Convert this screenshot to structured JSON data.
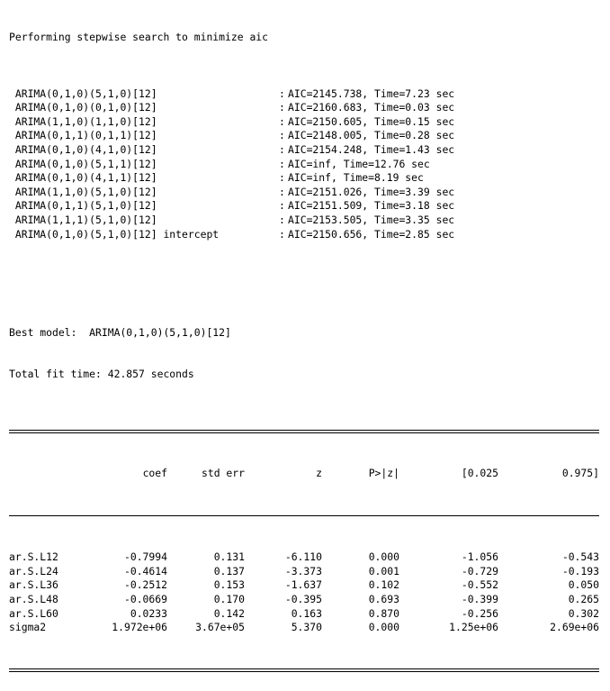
{
  "header": "Performing stepwise search to minimize aic",
  "steps": [
    {
      "model": " ARIMA(0,1,0)(5,1,0)[12]",
      "result": "AIC=2145.738, Time=7.23 sec"
    },
    {
      "model": " ARIMA(0,1,0)(0,1,0)[12]",
      "result": "AIC=2160.683, Time=0.03 sec"
    },
    {
      "model": " ARIMA(1,1,0)(1,1,0)[12]",
      "result": "AIC=2150.605, Time=0.15 sec"
    },
    {
      "model": " ARIMA(0,1,1)(0,1,1)[12]",
      "result": "AIC=2148.005, Time=0.28 sec"
    },
    {
      "model": " ARIMA(0,1,0)(4,1,0)[12]",
      "result": "AIC=2154.248, Time=1.43 sec"
    },
    {
      "model": " ARIMA(0,1,0)(5,1,1)[12]",
      "result": "AIC=inf, Time=12.76 sec"
    },
    {
      "model": " ARIMA(0,1,0)(4,1,1)[12]",
      "result": "AIC=inf, Time=8.19 sec"
    },
    {
      "model": " ARIMA(1,1,0)(5,1,0)[12]",
      "result": "AIC=2151.026, Time=3.39 sec"
    },
    {
      "model": " ARIMA(0,1,1)(5,1,0)[12]",
      "result": "AIC=2151.509, Time=3.18 sec"
    },
    {
      "model": " ARIMA(1,1,1)(5,1,0)[12]",
      "result": "AIC=2153.505, Time=3.35 sec"
    },
    {
      "model": " ARIMA(0,1,0)(5,1,0)[12] intercept",
      "result": "AIC=2150.656, Time=2.85 sec"
    }
  ],
  "step_separator": ":",
  "best_model": "Best model:  ARIMA(0,1,0)(5,1,0)[12]",
  "total_fit_time": "Total fit time: 42.857 seconds",
  "table": {
    "headers": [
      "",
      "coef",
      "std err",
      "z",
      "P>|z|",
      "[0.025",
      "0.975]"
    ],
    "rows": [
      [
        "ar.S.L12",
        "-0.7994",
        "0.131",
        "-6.110",
        "0.000",
        "-1.056",
        "-0.543"
      ],
      [
        "ar.S.L24",
        "-0.4614",
        "0.137",
        "-3.373",
        "0.001",
        "-0.729",
        "-0.193"
      ],
      [
        "ar.S.L36",
        "-0.2512",
        "0.153",
        "-1.637",
        "0.102",
        "-0.552",
        "0.050"
      ],
      [
        "ar.S.L48",
        "-0.0669",
        "0.170",
        "-0.395",
        "0.693",
        "-0.399",
        "0.265"
      ],
      [
        "ar.S.L60",
        "0.0233",
        "0.142",
        "0.163",
        "0.870",
        "-0.256",
        "0.302"
      ],
      [
        "sigma2",
        "1.972e+06",
        "3.67e+05",
        "5.370",
        "0.000",
        "1.25e+06",
        "2.69e+06"
      ]
    ]
  }
}
